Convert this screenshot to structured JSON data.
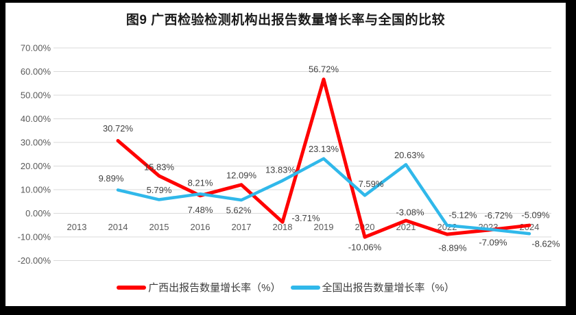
{
  "title": "图9 广西检验检测机构出报告数量增长率与全国的比较",
  "colors": {
    "guangxi_line": "#FF0000",
    "national_line": "#30B8EA",
    "grid": "#D9D9D9",
    "axis_text": "#595959",
    "data_label_text": "#404040",
    "frame": "#000000",
    "background": "#FFFFFF"
  },
  "legend": {
    "items": [
      {
        "label": "广西出报告数量增长率（%）",
        "color": "#FF0000"
      },
      {
        "label": "全国出报告数量增长率（%）",
        "color": "#30B8EA"
      }
    ]
  },
  "chart_data": {
    "type": "line",
    "title": "图9 广西检验检测机构出报告数量增长率与全国的比较",
    "categories": [
      "2013",
      "2014",
      "2015",
      "2016",
      "2017",
      "2018",
      "2019",
      "2020",
      "2021",
      "2022",
      "2023",
      "2024"
    ],
    "series": [
      {
        "name": "广西出报告数量增长率（%）",
        "color": "#FF0000",
        "values": [
          null,
          30.72,
          15.83,
          7.48,
          12.09,
          -3.71,
          56.72,
          -10.06,
          -3.08,
          -8.89,
          -7.09,
          -5.09
        ],
        "labels": [
          null,
          "30.72%",
          "15.83%",
          "7.48%",
          "12.09%",
          "-3.71%",
          "56.72%",
          "-10.06%",
          "-3.08%",
          "-8.89%",
          "-7.09%",
          "-5.09%"
        ],
        "label_offsets": [
          null,
          [
            0,
            -18
          ],
          [
            0,
            -13
          ],
          [
            0,
            21
          ],
          [
            0,
            -14
          ],
          [
            34,
            -6
          ],
          [
            0,
            -15
          ],
          [
            0,
            15
          ],
          [
            6,
            -12
          ],
          [
            8,
            20
          ],
          [
            7,
            18
          ],
          [
            9,
            -15
          ]
        ]
      },
      {
        "name": "全国出报告数量增长率（%）",
        "color": "#30B8EA",
        "values": [
          null,
          9.89,
          5.79,
          8.21,
          5.62,
          13.83,
          23.13,
          7.59,
          20.63,
          -5.12,
          -6.72,
          -8.62
        ],
        "labels": [
          null,
          "9.89%",
          "5.79%",
          "8.21%",
          "5.62%",
          "13.83%",
          "23.13%",
          "7.59%",
          "20.63%",
          "-5.12%",
          "-6.72%",
          "-8.62%"
        ],
        "label_offsets": [
          null,
          [
            -10,
            -17
          ],
          [
            0,
            -14
          ],
          [
            0,
            -16
          ],
          [
            -4,
            15
          ],
          [
            -3,
            -16
          ],
          [
            0,
            -14
          ],
          [
            9,
            -17
          ],
          [
            5,
            -14
          ],
          [
            23,
            -15
          ],
          [
            15,
            -20
          ],
          [
            24,
            15
          ]
        ]
      }
    ],
    "ylim": [
      -20,
      70
    ],
    "ytick_step": 10,
    "ytick_labels": [
      "70.00%",
      "60.00%",
      "50.00%",
      "40.00%",
      "30.00%",
      "20.00%",
      "10.00%",
      "0.00%",
      "-10.00%",
      "-20.00%"
    ],
    "xlabel": "",
    "ylabel": "",
    "grid": true,
    "legend_position": "bottom"
  }
}
